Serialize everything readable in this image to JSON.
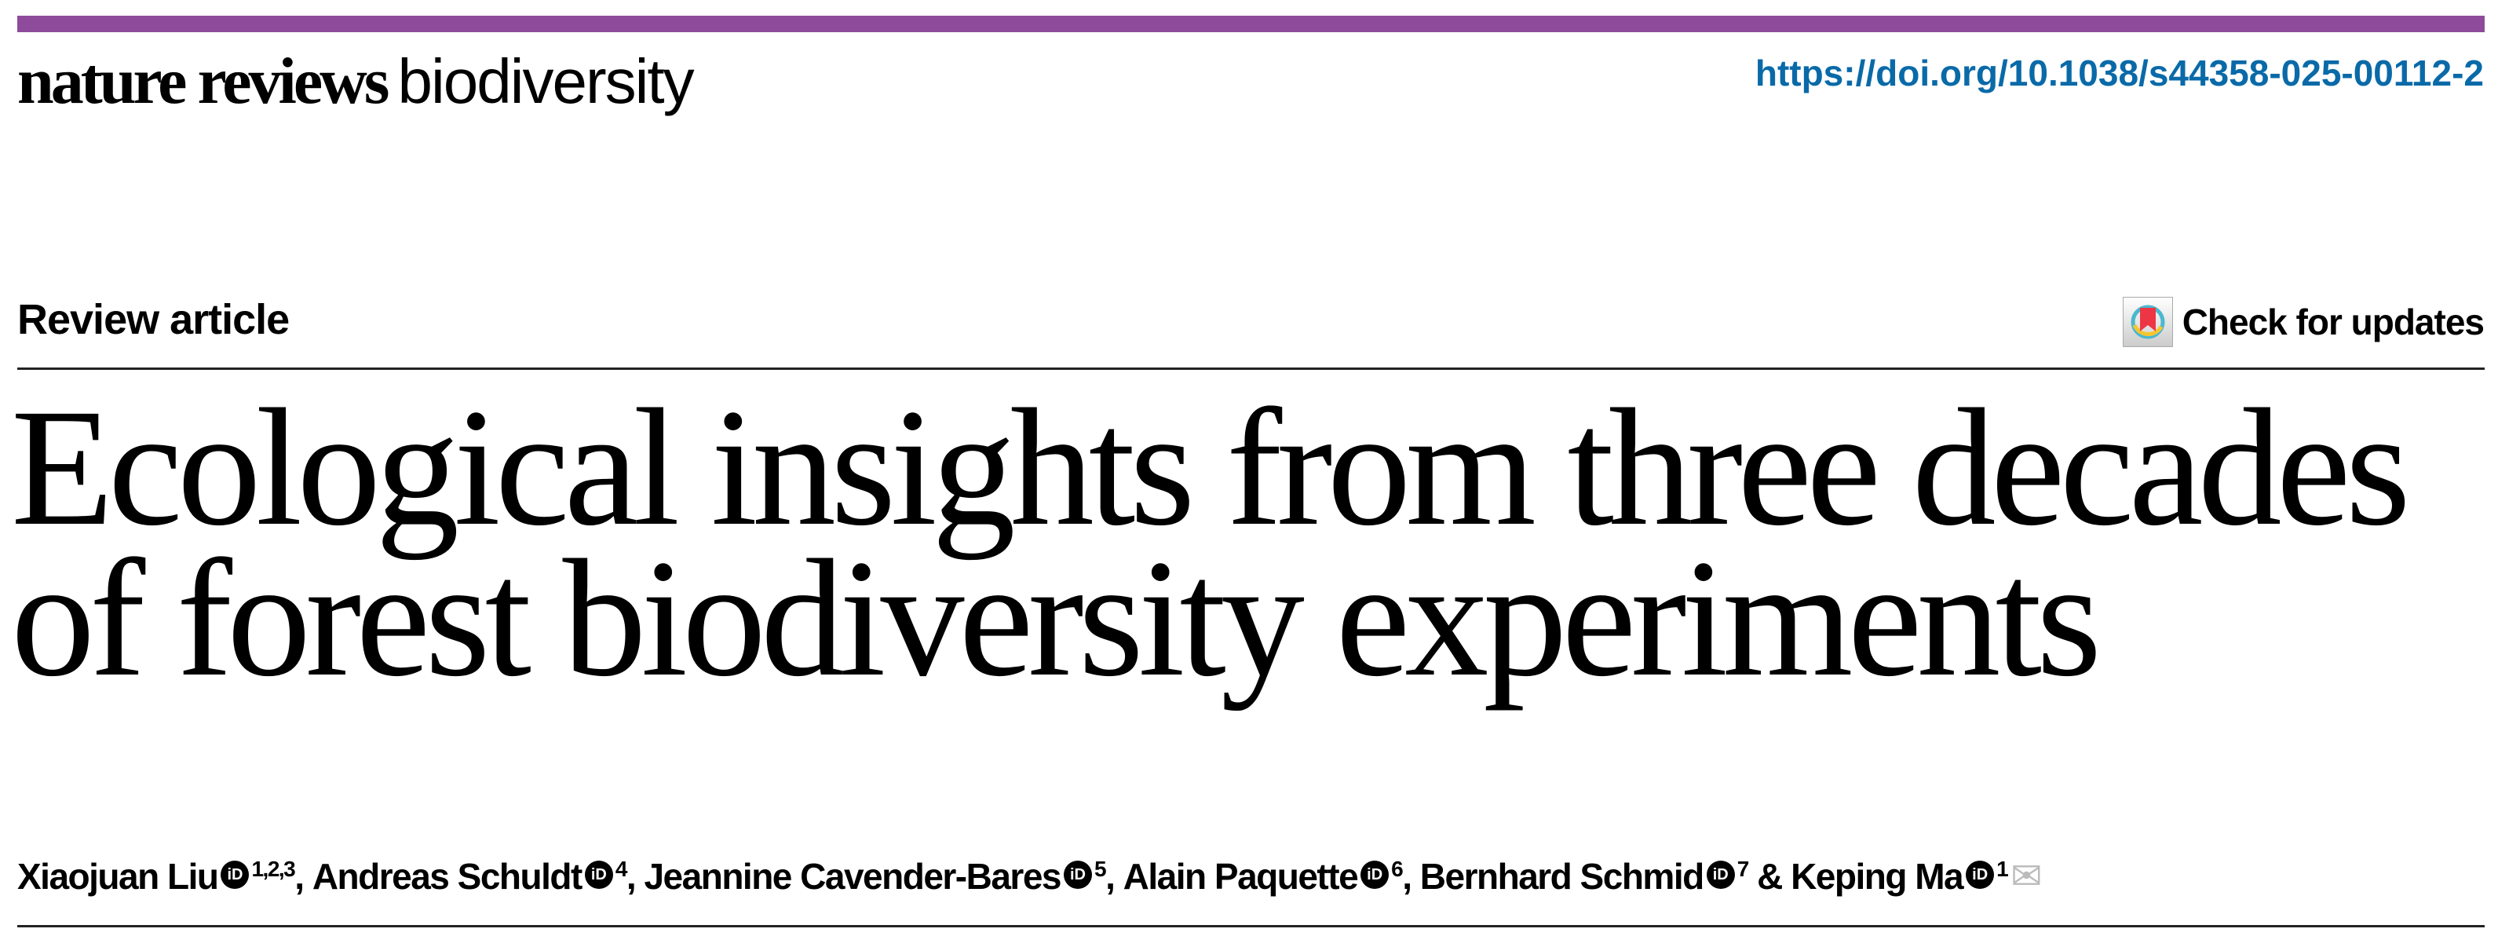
{
  "colors": {
    "journal_bar": "#8e4b9b",
    "doi_link": "#0a6aa8"
  },
  "header": {
    "journal_bold": "nature reviews",
    "journal_light": "biodiversity",
    "doi": "https://doi.org/10.1038/s44358-025-00112-2"
  },
  "article": {
    "type": "Review article",
    "check_updates": "Check for updates",
    "title_line1": "Ecological insights from three decades",
    "title_line2": "of forest biodiversity experiments"
  },
  "authors": [
    {
      "name": "Xiaojuan Liu",
      "aff": "1,2,3",
      "sep": ", "
    },
    {
      "name": "Andreas Schuldt",
      "aff": "4",
      "sep": ", "
    },
    {
      "name": "Jeannine Cavender-Bares",
      "aff": "5",
      "sep": ", "
    },
    {
      "name": "Alain Paquette",
      "aff": "6",
      "sep": ", "
    },
    {
      "name": "Bernhard Schmid",
      "aff": "7",
      "sep": " & "
    },
    {
      "name": "Keping Ma",
      "aff": "1",
      "sep": ""
    }
  ],
  "icons": {
    "orcid": "orcid-icon",
    "orcid_text": "iD",
    "mail": "envelope-icon",
    "update": "crossmark-icon"
  }
}
